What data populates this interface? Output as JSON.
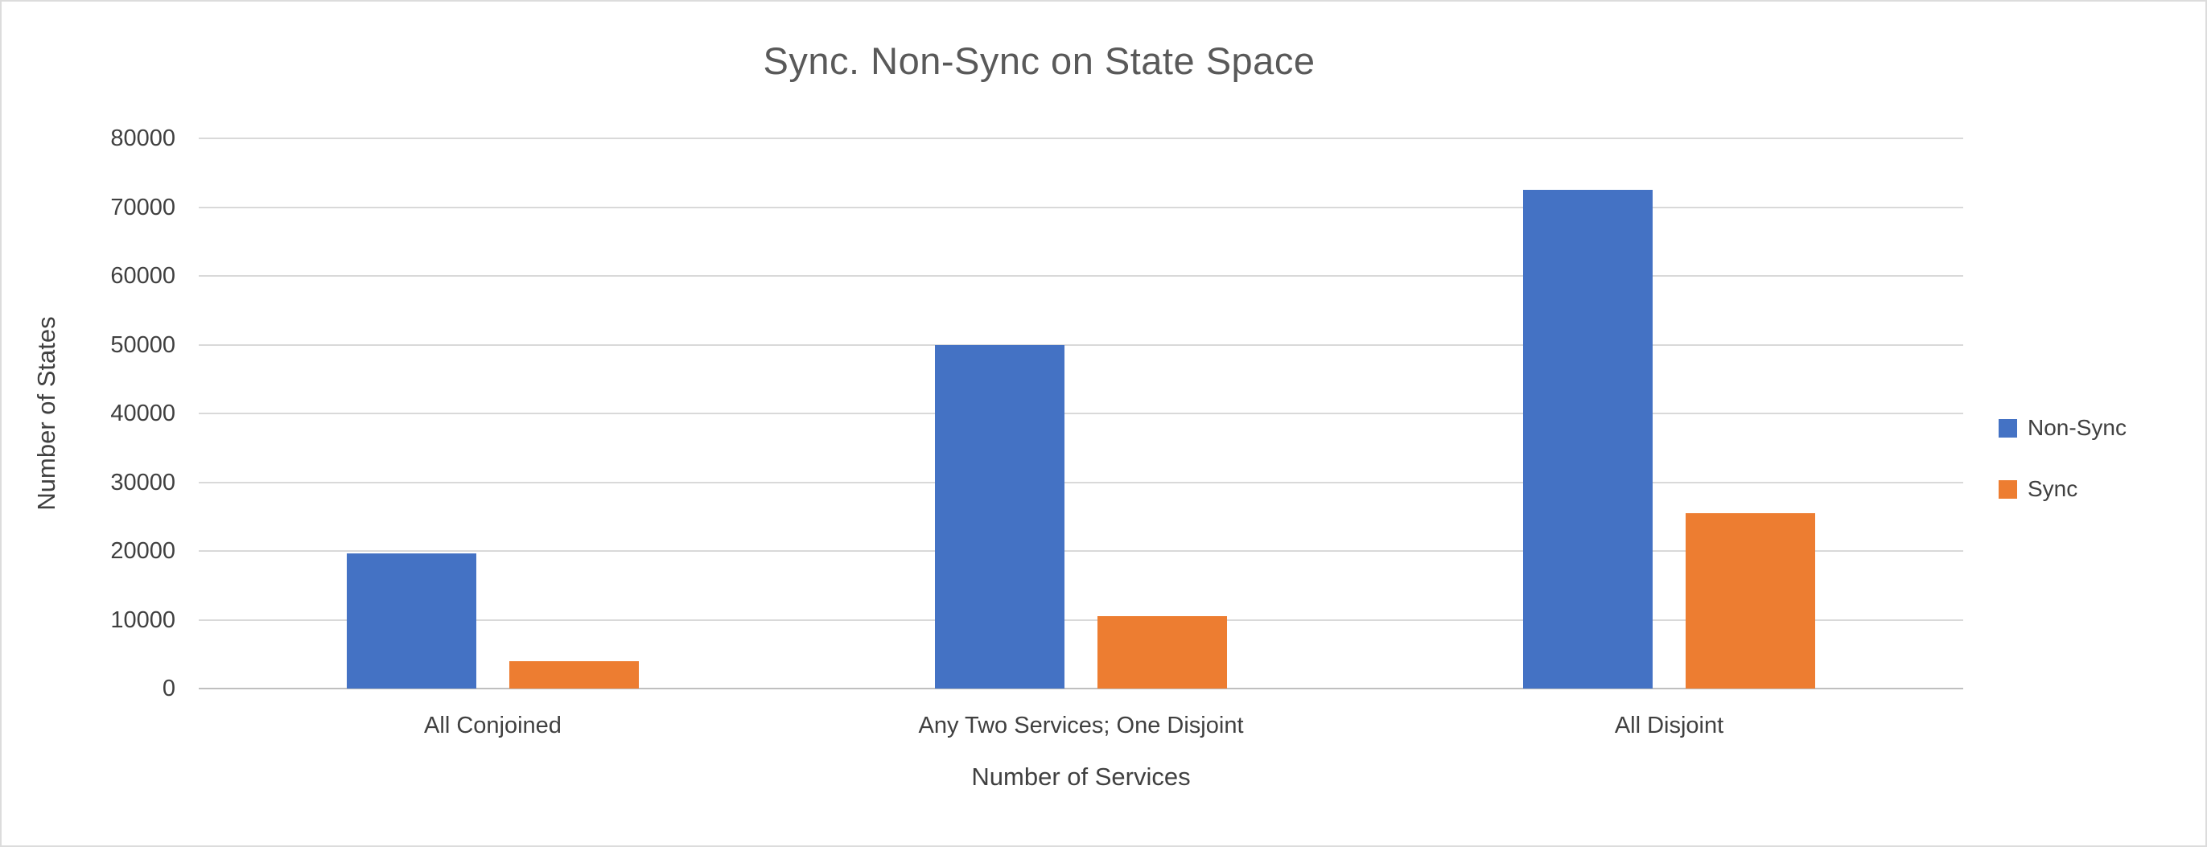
{
  "colors": {
    "non_sync": "#4472C4",
    "sync": "#ED7D31",
    "gridline": "#d9d9d9",
    "axis_line": "#bfbfbf",
    "title_text": "#595959",
    "axis_text": "#404040"
  },
  "chart_data": {
    "type": "bar",
    "title": "Sync. Non-Sync on State Space",
    "xlabel": "Number of Services",
    "ylabel": "Number of States",
    "categories": [
      "All Conjoined",
      "Any Two Services; One Disjoint",
      "All Disjoint"
    ],
    "series": [
      {
        "name": "Non-Sync",
        "color": "#4472C4",
        "values": [
          19700,
          50000,
          72500
        ]
      },
      {
        "name": "Sync",
        "color": "#ED7D31",
        "values": [
          4000,
          10500,
          25500
        ]
      }
    ],
    "ylim": [
      0,
      80000
    ],
    "ytick_step": 10000,
    "ytick_labels": [
      "0",
      "10000",
      "20000",
      "30000",
      "40000",
      "50000",
      "60000",
      "70000",
      "80000"
    ],
    "grid": true,
    "legend_position": "right",
    "legend_entries": [
      "Non-Sync",
      "Sync"
    ]
  }
}
